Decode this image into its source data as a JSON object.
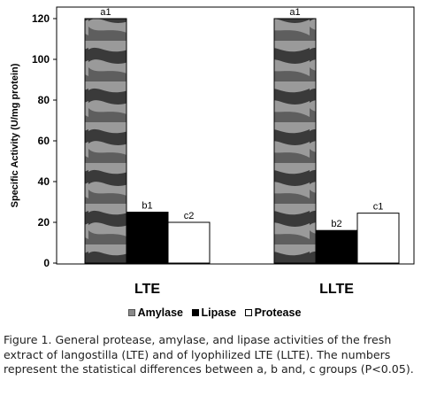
{
  "chart_data": {
    "type": "bar",
    "ylabel": "Specific Activity (U/mg protein)",
    "xlabel": "",
    "ylim": [
      0,
      120
    ],
    "yticks": [
      0,
      20,
      40,
      60,
      80,
      100,
      120
    ],
    "categories": [
      "LTE",
      "LLTE"
    ],
    "series": [
      {
        "name": "Amylase",
        "values": [
          120,
          120
        ],
        "labels": [
          "a1",
          "a1"
        ],
        "color": "#8a8a8a"
      },
      {
        "name": "Lipase",
        "values": [
          25,
          16
        ],
        "labels": [
          "b1",
          "b2"
        ],
        "color": "#000000"
      },
      {
        "name": "Protease",
        "values": [
          20,
          24.5
        ],
        "labels": [
          "c2",
          "c1"
        ],
        "color": "#ffffff"
      }
    ],
    "legend_position": "bottom",
    "grid": false
  },
  "caption": "Figure 1. General protease, amylase, and lipase activities of the fresh extract of langostilla (LTE) and of lyophilized LTE (LLTE). The numbers represent the statistical differences between a, b and, c groups (P<0.05)."
}
